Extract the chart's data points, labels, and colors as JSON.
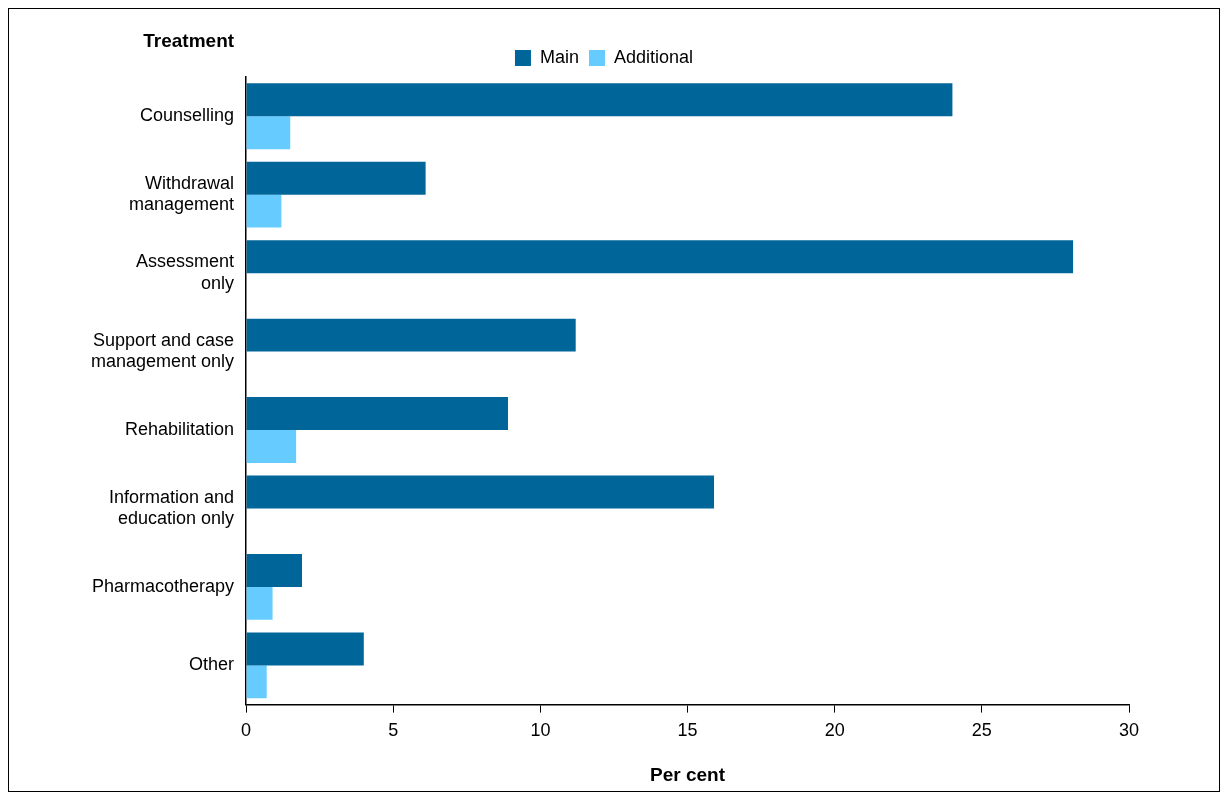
{
  "chart_data": {
    "type": "bar",
    "orientation": "horizontal",
    "ylabel": "Treatment",
    "xlabel": "Per cent",
    "categories": [
      "Counselling",
      "Withdrawal management",
      "Assessment only",
      "Support and case management only",
      "Rehabilitation",
      "Information and education only",
      "Pharmacotherapy",
      "Other"
    ],
    "series": [
      {
        "name": "Main",
        "color": "#006699",
        "values": [
          24.0,
          6.1,
          28.1,
          11.2,
          8.9,
          15.9,
          1.9,
          4.0
        ]
      },
      {
        "name": "Additional",
        "color": "#66ccff",
        "values": [
          1.5,
          1.2,
          null,
          null,
          1.7,
          null,
          0.9,
          0.7
        ]
      }
    ],
    "xlim": [
      0,
      30
    ],
    "xticks": [
      0,
      5,
      10,
      15,
      20,
      25,
      30
    ],
    "legend": "top",
    "grid": false
  }
}
